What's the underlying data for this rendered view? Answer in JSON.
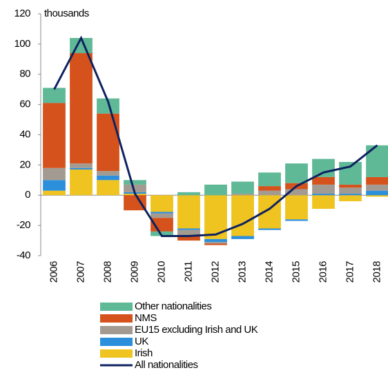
{
  "chart_data": {
    "type": "bar",
    "y_unit_label": "thousands",
    "categories": [
      "2006",
      "2007",
      "2008",
      "2009",
      "2010",
      "2011",
      "2012",
      "2013",
      "2014",
      "2015",
      "2016",
      "2017",
      "2018"
    ],
    "series": [
      {
        "name": "Irish",
        "color": "#efc320",
        "values": [
          3,
          17,
          10,
          1,
          -11,
          -22,
          -29,
          -27,
          -22,
          -16,
          -9,
          -4,
          -1
        ]
      },
      {
        "name": "UK",
        "color": "#2c8fdc",
        "values": [
          7,
          1,
          3,
          1,
          -1,
          -1,
          -2,
          -2,
          -1,
          -1,
          1,
          1,
          3
        ]
      },
      {
        "name": "EU15 excluding Irish and UK",
        "color": "#a39b91",
        "values": [
          8,
          3,
          3,
          5,
          -3,
          -4,
          -1,
          1,
          3,
          4,
          6,
          4,
          4
        ]
      },
      {
        "name": "NMS",
        "color": "#d5521c",
        "values": [
          43,
          73,
          38,
          -10,
          -9,
          -3,
          -1,
          0,
          3,
          4,
          5,
          2,
          5
        ]
      },
      {
        "name": "Other nationalities",
        "color": "#5fb896",
        "values": [
          10,
          10,
          10,
          3,
          -3,
          2,
          7,
          8,
          9,
          13,
          12,
          15,
          21
        ]
      },
      {
        "name": "All nationalities",
        "color": "#0d2260",
        "type": "line",
        "values": [
          70,
          104,
          62,
          1,
          -27,
          -27,
          -26,
          -19,
          -9,
          6,
          15,
          19,
          33
        ]
      }
    ],
    "ylim": [
      -40,
      120
    ],
    "yticks": [
      -40,
      -20,
      0,
      20,
      40,
      60,
      80,
      100,
      120
    ]
  }
}
